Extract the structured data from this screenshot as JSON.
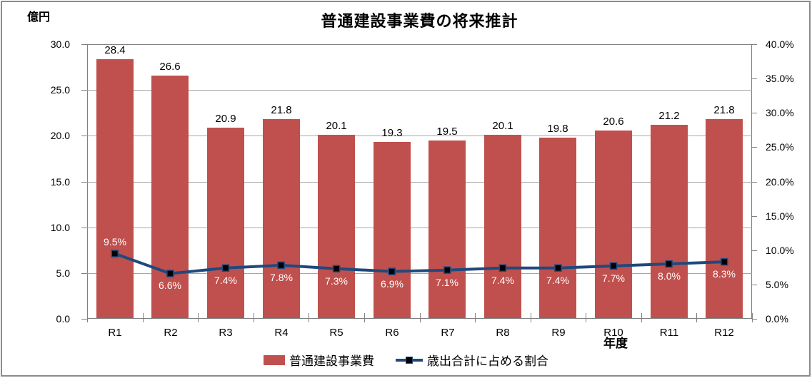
{
  "chart_data": {
    "type": "combo",
    "title": "普通建設事業費の将来推計",
    "xlabel": "年度",
    "categories": [
      "R1",
      "R2",
      "R3",
      "R4",
      "R5",
      "R6",
      "R7",
      "R8",
      "R9",
      "R10",
      "R11",
      "R12"
    ],
    "series": [
      {
        "name": "普通建設事業費",
        "type": "bar",
        "axis": "left",
        "color": "#C0504D",
        "values": [
          28.4,
          26.6,
          20.9,
          21.8,
          20.1,
          19.3,
          19.5,
          20.1,
          19.8,
          20.6,
          21.2,
          21.8
        ],
        "labels": [
          "28.4",
          "26.6",
          "20.9",
          "21.8",
          "20.1",
          "19.3",
          "19.5",
          "20.1",
          "19.8",
          "20.6",
          "21.2",
          "21.8"
        ],
        "label_color": "#000000"
      },
      {
        "name": "歳出合計に占める割合",
        "type": "line",
        "axis": "right",
        "color": "#1F497D",
        "marker_color": "#000000",
        "values": [
          9.5,
          6.6,
          7.4,
          7.8,
          7.3,
          6.9,
          7.1,
          7.4,
          7.4,
          7.7,
          8.0,
          8.3
        ],
        "labels": [
          "9.5%",
          "6.6%",
          "7.4%",
          "7.8%",
          "7.3%",
          "6.9%",
          "7.1%",
          "7.4%",
          "7.4%",
          "7.7%",
          "8.0%",
          "8.3%"
        ],
        "label_positions": [
          "above",
          "below",
          "below",
          "below",
          "below",
          "below",
          "below",
          "below",
          "below",
          "below",
          "below",
          "below"
        ],
        "label_color": "#FFFFFF"
      }
    ],
    "left_axis": {
      "unit": "億円",
      "min": 0,
      "max": 30,
      "step": 5,
      "tick_labels": [
        "0.0",
        "5.0",
        "10.0",
        "15.0",
        "20.0",
        "25.0",
        "30.0"
      ]
    },
    "right_axis": {
      "min": 0,
      "max": 40,
      "step": 5,
      "tick_labels": [
        "0.0%",
        "5.0%",
        "10.0%",
        "15.0%",
        "20.0%",
        "25.0%",
        "30.0%",
        "35.0%",
        "40.0%"
      ]
    },
    "grid": true,
    "legend_position": "bottom",
    "axis_color": "#808080",
    "gridline_color": "#A6A6A6"
  }
}
